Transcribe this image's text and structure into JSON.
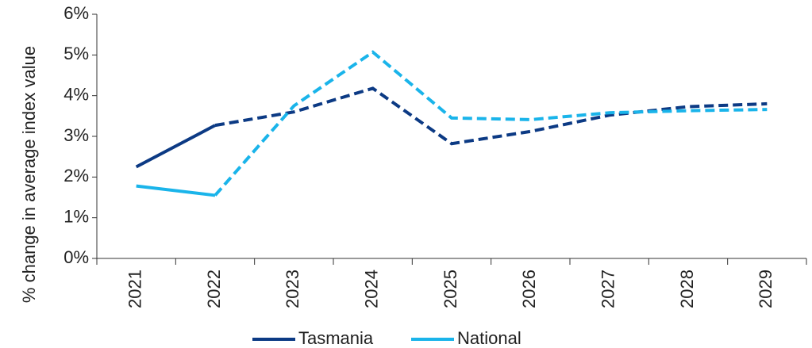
{
  "chart_data": {
    "type": "line",
    "y_label": "% change in average index value",
    "categories": [
      "2021",
      "2022",
      "2023",
      "2024",
      "2025",
      "2026",
      "2027",
      "2028",
      "2029"
    ],
    "solid_until": "2022",
    "series": [
      {
        "name": "Tasmania",
        "color": "#0c3a84",
        "values": [
          2.25,
          3.27,
          3.6,
          4.18,
          2.82,
          3.12,
          3.52,
          3.73,
          3.8
        ]
      },
      {
        "name": "National",
        "color": "#1ab4ea",
        "values": [
          1.78,
          1.55,
          3.75,
          5.07,
          3.45,
          3.41,
          3.58,
          3.63,
          3.66
        ]
      }
    ],
    "ylim": [
      0,
      6
    ],
    "yticks": [
      {
        "value": 0,
        "label": "0%"
      },
      {
        "value": 1,
        "label": "1%"
      },
      {
        "value": 2,
        "label": "2%"
      },
      {
        "value": 3,
        "label": "3%"
      },
      {
        "value": 4,
        "label": "4%"
      },
      {
        "value": 5,
        "label": "5%"
      },
      {
        "value": 6,
        "label": "6%"
      }
    ]
  }
}
